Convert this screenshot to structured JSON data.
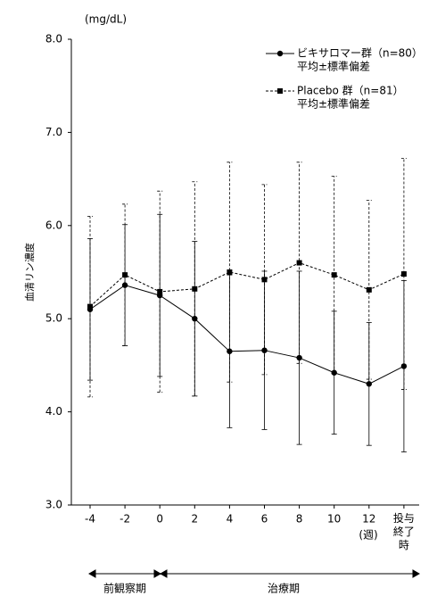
{
  "chart_data": {
    "type": "line",
    "y_unit": "(mg/dL)",
    "y_label": "血清リン濃度",
    "x_unit": "(週)",
    "categories": [
      "-4",
      "-2",
      "0",
      "2",
      "4",
      "6",
      "8",
      "10",
      "12",
      "投与終了時"
    ],
    "ylim": [
      3,
      8
    ],
    "yticks": [
      {
        "value": 3,
        "label": "3.0"
      },
      {
        "value": 4,
        "label": "4.0"
      },
      {
        "value": 5,
        "label": "5.0"
      },
      {
        "value": 6,
        "label": "6.0"
      },
      {
        "value": 7,
        "label": "7.0"
      },
      {
        "value": 8,
        "label": "8.0"
      }
    ],
    "series": [
      {
        "name": "ビキサロマー群（n=80）",
        "description": "平均±標準偏差",
        "color": "#000000",
        "marker": "circle",
        "dash": "solid",
        "values": [
          5.1,
          5.36,
          5.25,
          5.0,
          4.65,
          4.66,
          4.58,
          4.42,
          4.3,
          4.49
        ],
        "errors": [
          0.76,
          0.65,
          0.87,
          0.83,
          0.82,
          0.85,
          0.93,
          0.66,
          0.66,
          0.92
        ]
      },
      {
        "name": "Placebo 群（n=81）",
        "description": "平均±標準偏差",
        "color": "#000000",
        "marker": "square",
        "dash": "dashed",
        "values": [
          5.13,
          5.47,
          5.29,
          5.32,
          5.5,
          5.42,
          5.6,
          5.47,
          5.31,
          5.48
        ],
        "errors": [
          0.97,
          0.76,
          1.08,
          1.15,
          1.18,
          1.02,
          1.08,
          1.06,
          0.96,
          1.24
        ]
      }
    ],
    "periods": [
      "前観察期",
      "治療期"
    ]
  }
}
